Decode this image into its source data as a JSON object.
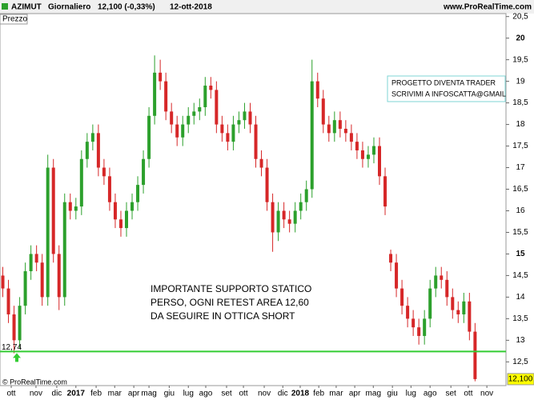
{
  "header": {
    "symbol": "AZIMUT",
    "period": "Giornaliero",
    "price": "12,100 (-0,33%)",
    "date": "12-ott-2018",
    "site": "www.ProRealTime.com"
  },
  "chart_data": {
    "type": "candlestick",
    "panel_label": "Prezzo",
    "up_color": "#2ca02c",
    "down_color": "#d62728",
    "open": [
      14.5,
      14.2,
      13.6,
      13.0,
      13.8,
      14.6,
      15.0,
      14.8,
      14.0,
      17.0,
      15.0,
      14.0,
      16.2,
      16.0,
      16.1,
      17.2,
      17.6,
      17.8,
      17.0,
      16.8,
      16.2,
      15.8,
      15.6,
      16.0,
      16.2,
      16.6,
      17.2,
      18.2,
      19.2,
      19.0,
      18.3,
      18.0,
      17.7,
      18.0,
      18.2,
      18.3,
      18.4,
      18.9,
      18.8,
      18.0,
      17.8,
      17.6,
      18.0,
      18.1,
      18.3,
      18.0,
      17.2,
      17.0,
      16.2,
      15.5,
      16.0,
      15.8,
      15.7,
      16.0,
      16.2,
      16.5,
      19.0,
      18.6,
      18.0,
      17.8,
      18.1,
      17.9,
      17.8,
      17.6,
      17.4,
      17.2,
      17.3,
      17.5,
      16.8,
      15.0,
      14.8,
      14.2,
      13.8,
      13.5,
      13.3,
      13.1,
      13.5,
      14.2,
      14.5,
      14.4,
      14.0,
      13.7,
      13.6,
      13.9,
      13.2
    ],
    "high": [
      14.7,
      14.4,
      13.8,
      14.0,
      14.8,
      15.2,
      15.2,
      15.0,
      17.3,
      17.2,
      15.2,
      16.4,
      16.4,
      16.3,
      17.4,
      17.8,
      18.0,
      18.0,
      17.2,
      17.0,
      16.4,
      16.0,
      16.2,
      16.4,
      16.8,
      17.4,
      18.4,
      19.6,
      19.5,
      19.2,
      18.5,
      18.2,
      18.2,
      18.4,
      18.5,
      18.6,
      19.1,
      19.1,
      19.0,
      18.2,
      18.0,
      18.2,
      18.3,
      18.5,
      18.5,
      18.2,
      17.4,
      17.2,
      16.4,
      16.2,
      16.2,
      16.0,
      16.2,
      16.4,
      16.7,
      19.5,
      19.2,
      18.8,
      18.2,
      18.3,
      18.3,
      18.1,
      18.0,
      17.8,
      17.6,
      17.5,
      17.7,
      17.7,
      17.0,
      15.1,
      15.0,
      14.4,
      14.0,
      13.7,
      13.5,
      13.7,
      14.4,
      14.7,
      14.7,
      14.6,
      14.2,
      13.9,
      14.1,
      14.1,
      13.4
    ],
    "low": [
      14.0,
      13.4,
      12.7,
      12.8,
      13.6,
      14.4,
      14.6,
      13.8,
      13.8,
      14.8,
      13.7,
      13.8,
      15.8,
      15.8,
      15.9,
      17.0,
      17.4,
      16.8,
      16.6,
      16.0,
      15.6,
      15.4,
      15.4,
      15.8,
      16.0,
      16.4,
      17.0,
      18.0,
      18.8,
      18.1,
      17.8,
      17.5,
      17.5,
      17.8,
      18.0,
      18.1,
      18.2,
      18.6,
      17.8,
      17.6,
      17.4,
      17.4,
      17.8,
      17.9,
      17.8,
      17.0,
      16.8,
      16.0,
      15.05,
      15.3,
      15.6,
      15.5,
      15.5,
      15.8,
      16.0,
      16.3,
      18.4,
      17.8,
      17.6,
      17.6,
      17.7,
      17.6,
      17.4,
      17.2,
      17.0,
      17.0,
      17.1,
      16.6,
      15.9,
      14.6,
      14.0,
      13.6,
      13.3,
      13.1,
      12.9,
      12.9,
      13.3,
      14.0,
      14.2,
      13.8,
      13.5,
      13.4,
      13.4,
      13.0,
      12.05
    ],
    "close": [
      14.2,
      13.6,
      13.0,
      13.8,
      14.6,
      15.0,
      14.8,
      14.0,
      17.0,
      15.0,
      14.0,
      16.2,
      16.0,
      16.1,
      17.2,
      17.6,
      17.8,
      17.0,
      16.8,
      16.2,
      15.8,
      15.6,
      16.0,
      16.2,
      16.6,
      17.2,
      18.2,
      19.2,
      19.0,
      18.3,
      18.0,
      17.7,
      18.0,
      18.2,
      18.3,
      18.4,
      18.9,
      18.8,
      18.0,
      17.8,
      17.6,
      18.0,
      18.1,
      18.3,
      18.0,
      17.2,
      17.0,
      16.2,
      15.5,
      16.0,
      15.8,
      15.7,
      16.0,
      16.2,
      16.5,
      19.0,
      18.6,
      18.0,
      17.8,
      18.1,
      17.9,
      17.8,
      17.6,
      17.4,
      17.2,
      17.3,
      17.5,
      16.8,
      16.1,
      14.8,
      14.2,
      13.8,
      13.5,
      13.3,
      13.1,
      13.5,
      14.2,
      14.5,
      14.4,
      14.0,
      13.7,
      13.6,
      13.9,
      13.2,
      12.1
    ],
    "xlim": [
      0,
      90
    ],
    "xticks": [
      {
        "value": 2.0,
        "label": "ott"
      },
      {
        "value": 6.4,
        "label": "nov"
      },
      {
        "value": 10.1,
        "label": "dic"
      },
      {
        "value": 13.5,
        "label": "2017"
      },
      {
        "value": 17.1,
        "label": "feb"
      },
      {
        "value": 20.4,
        "label": "mar"
      },
      {
        "value": 23.8,
        "label": "apr"
      },
      {
        "value": 26.5,
        "label": "mag"
      },
      {
        "value": 30.1,
        "label": "giu"
      },
      {
        "value": 33.5,
        "label": "lug"
      },
      {
        "value": 36.6,
        "label": "ago"
      },
      {
        "value": 40.3,
        "label": "set"
      },
      {
        "value": 43.3,
        "label": "ott"
      },
      {
        "value": 47.0,
        "label": "nov"
      },
      {
        "value": 50.3,
        "label": "dic"
      },
      {
        "value": 53.4,
        "label": "2018"
      },
      {
        "value": 56.7,
        "label": "feb"
      },
      {
        "value": 59.8,
        "label": "mar"
      },
      {
        "value": 63.1,
        "label": "apr"
      },
      {
        "value": 66.4,
        "label": "mag"
      },
      {
        "value": 69.8,
        "label": "giu"
      },
      {
        "value": 73.1,
        "label": "lug"
      },
      {
        "value": 76.5,
        "label": "ago"
      },
      {
        "value": 80.2,
        "label": "set"
      },
      {
        "value": 83.3,
        "label": "ott"
      },
      {
        "value": 86.6,
        "label": "nov"
      }
    ],
    "ylim": [
      11.95,
      20.55
    ],
    "yticks": [
      {
        "value": 12.5,
        "label": "12,5"
      },
      13,
      {
        "value": 13.5,
        "label": "13,5"
      },
      14,
      {
        "value": 14.5,
        "label": "14,5"
      },
      15,
      {
        "value": 15.5,
        "label": "15,5"
      },
      16,
      {
        "value": 16.5,
        "label": "16,5"
      },
      17,
      {
        "value": 17.5,
        "label": "17,5"
      },
      18,
      {
        "value": 18.5,
        "label": "18,5"
      },
      19,
      {
        "value": 19.5,
        "label": "19,5"
      },
      20,
      {
        "value": 20.5,
        "label": "20,5"
      }
    ],
    "level": {
      "value": 12.74,
      "label": "12,74",
      "color": "#33cc33"
    },
    "last_price": {
      "value": 12.1,
      "label": "12,100"
    },
    "note_box": [
      "PROGETTO DIVENTA TRADER",
      "SCRIVIMI A INFOSCATTA@GMAIL"
    ],
    "note": [
      "IMPORTANTE SUPPORTO STATICO",
      "PERSO, OGNI RETEST AREA 12,60",
      "DA SEGUIRE IN OTTICA SHORT"
    ]
  },
  "footer": "© ProRealTime.com"
}
